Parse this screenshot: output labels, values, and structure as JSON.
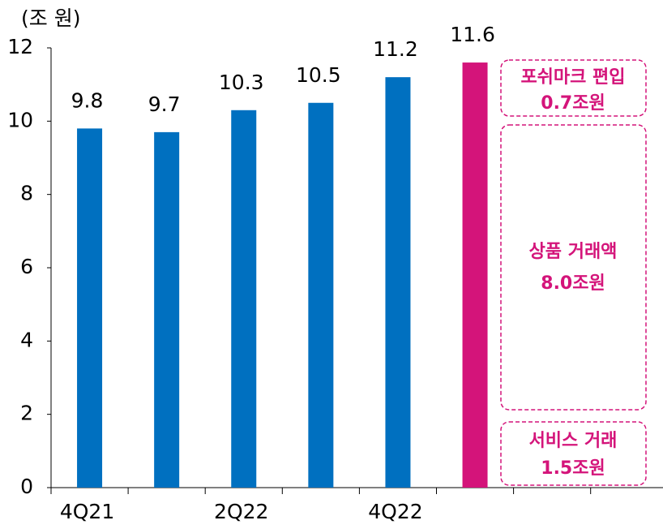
{
  "chart_data": {
    "type": "bar",
    "y_axis_label": "(조 원)",
    "categories": [
      "4Q21",
      null,
      "2Q22",
      null,
      "4Q22",
      null
    ],
    "values": [
      9.8,
      9.7,
      10.3,
      10.5,
      11.2,
      11.6
    ],
    "colors": [
      "#0070c0",
      "#0070c0",
      "#0070c0",
      "#0070c0",
      "#0070c0",
      "#d4147a"
    ],
    "ylim": [
      0,
      12
    ],
    "yticks": [
      0,
      2,
      4,
      6,
      8,
      10,
      12
    ],
    "grid": false,
    "annotations": [
      {
        "lines": [
          "포쉬마크 편입",
          "0.7조원"
        ]
      },
      {
        "lines": [
          "상품 거래액",
          "8.0조원"
        ]
      },
      {
        "lines": [
          "서비스 거래",
          "1.5조원"
        ]
      }
    ]
  }
}
